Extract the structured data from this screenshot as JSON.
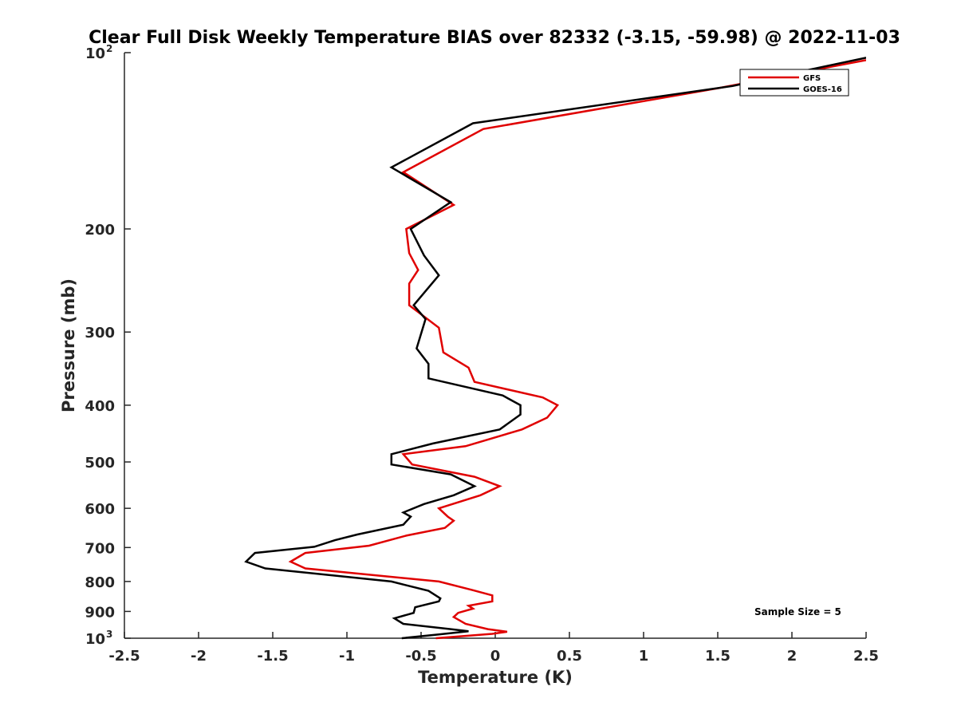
{
  "chart_data": {
    "type": "line",
    "title": "Clear Full Disk Weekly Temperature BIAS over 82332 (-3.15, -59.98) @ 2022-11-03",
    "xlabel": "Temperature (K)",
    "ylabel": "Pressure (mb)",
    "xlim": [
      -2.5,
      2.5
    ],
    "ylim": [
      100,
      1000
    ],
    "y_scale": "log",
    "y_reversed": true,
    "x_ticks": [
      "-2.5",
      "-2",
      "-1.5",
      "-1",
      "-0.5",
      "0",
      "0.5",
      "1",
      "1.5",
      "2",
      "2.5"
    ],
    "y_ticks": [
      {
        "value": 100,
        "base": "10",
        "exp": "2"
      },
      {
        "value": 200,
        "label": "200"
      },
      {
        "value": 300,
        "label": "300"
      },
      {
        "value": 400,
        "label": "400"
      },
      {
        "value": 500,
        "label": "500"
      },
      {
        "value": 600,
        "label": "600"
      },
      {
        "value": 700,
        "label": "700"
      },
      {
        "value": 800,
        "label": "800"
      },
      {
        "value": 900,
        "label": "900"
      },
      {
        "value": 1000,
        "base": "10",
        "exp": "3"
      }
    ],
    "grid": false,
    "legend_position": "top-right",
    "annotation": "Sample Size = 5",
    "series": [
      {
        "name": "GFS",
        "color": "#e00000",
        "points": [
          [
            2.5,
            103
          ],
          [
            1.5,
            115
          ],
          [
            -0.08,
            135
          ],
          [
            -0.62,
            160
          ],
          [
            -0.28,
            182
          ],
          [
            -0.6,
            200
          ],
          [
            -0.58,
            220
          ],
          [
            -0.52,
            235
          ],
          [
            -0.58,
            248
          ],
          [
            -0.58,
            270
          ],
          [
            -0.38,
            295
          ],
          [
            -0.35,
            325
          ],
          [
            -0.18,
            345
          ],
          [
            -0.14,
            365
          ],
          [
            0.32,
            388
          ],
          [
            0.42,
            400
          ],
          [
            0.35,
            420
          ],
          [
            0.18,
            440
          ],
          [
            -0.2,
            470
          ],
          [
            -0.62,
            485
          ],
          [
            -0.56,
            505
          ],
          [
            -0.14,
            530
          ],
          [
            0.03,
            550
          ],
          [
            -0.1,
            570
          ],
          [
            -0.38,
            600
          ],
          [
            -0.32,
            620
          ],
          [
            -0.28,
            630
          ],
          [
            -0.34,
            648
          ],
          [
            -0.6,
            668
          ],
          [
            -0.85,
            695
          ],
          [
            -1.28,
            715
          ],
          [
            -1.38,
            740
          ],
          [
            -1.28,
            760
          ],
          [
            -0.38,
            800
          ],
          [
            -0.15,
            828
          ],
          [
            -0.02,
            845
          ],
          [
            -0.02,
            865
          ],
          [
            -0.18,
            880
          ],
          [
            -0.15,
            890
          ],
          [
            -0.25,
            905
          ],
          [
            -0.28,
            920
          ],
          [
            -0.2,
            945
          ],
          [
            -0.05,
            965
          ],
          [
            0.08,
            975
          ],
          [
            -0.02,
            983
          ],
          [
            -0.4,
            1000
          ]
        ]
      },
      {
        "name": "GOES-16",
        "color": "#000000",
        "points": [
          [
            2.5,
            102
          ],
          [
            1.6,
            114
          ],
          [
            -0.15,
            132
          ],
          [
            -0.7,
            157
          ],
          [
            -0.3,
            180
          ],
          [
            -0.57,
            200
          ],
          [
            -0.48,
            222
          ],
          [
            -0.38,
            240
          ],
          [
            -0.55,
            270
          ],
          [
            -0.47,
            285
          ],
          [
            -0.53,
            320
          ],
          [
            -0.45,
            340
          ],
          [
            -0.45,
            360
          ],
          [
            0.05,
            385
          ],
          [
            0.17,
            400
          ],
          [
            0.17,
            415
          ],
          [
            0.03,
            440
          ],
          [
            -0.42,
            465
          ],
          [
            -0.7,
            485
          ],
          [
            -0.7,
            505
          ],
          [
            -0.3,
            525
          ],
          [
            -0.14,
            550
          ],
          [
            -0.28,
            570
          ],
          [
            -0.48,
            590
          ],
          [
            -0.62,
            610
          ],
          [
            -0.57,
            620
          ],
          [
            -0.62,
            640
          ],
          [
            -0.93,
            665
          ],
          [
            -1.08,
            680
          ],
          [
            -1.22,
            698
          ],
          [
            -1.62,
            715
          ],
          [
            -1.68,
            740
          ],
          [
            -1.55,
            760
          ],
          [
            -0.7,
            800
          ],
          [
            -0.45,
            830
          ],
          [
            -0.37,
            855
          ],
          [
            -0.38,
            865
          ],
          [
            -0.54,
            885
          ],
          [
            -0.55,
            905
          ],
          [
            -0.68,
            925
          ],
          [
            -0.62,
            945
          ],
          [
            -0.3,
            965
          ],
          [
            -0.18,
            973
          ],
          [
            -0.38,
            985
          ],
          [
            -0.63,
            1000
          ]
        ]
      }
    ]
  }
}
